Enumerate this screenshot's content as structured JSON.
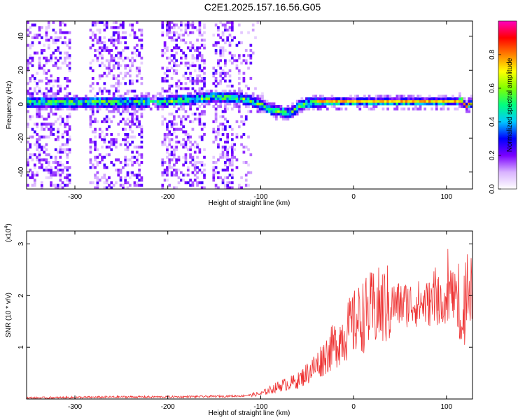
{
  "title": "C2E1.2025.157.16.56.G05",
  "chart_data": [
    {
      "type": "heatmap",
      "xlabel": "Height of straight line (km)",
      "ylabel": "Frequency (Hz)",
      "xlim": [
        -352,
        128
      ],
      "ylim": [
        -50,
        49
      ],
      "xticks": [
        -300,
        -200,
        -100,
        0,
        100
      ],
      "yticks": [
        -40,
        -20,
        0,
        20,
        40
      ],
      "grid": false,
      "colorbar": {
        "label": "Normalized spectral amplitude",
        "range": [
          0,
          1
        ],
        "ticks": [
          0.0,
          0.2,
          0.4,
          0.6,
          0.8
        ],
        "tick_labels": [
          "0.0",
          "0.2",
          "0.4",
          "0.6",
          "0.8"
        ],
        "colors": [
          "#ffffff",
          "#d9b3ff",
          "#7a00ff",
          "#0000ff",
          "#00c8ff",
          "#00ff80",
          "#80ff00",
          "#ffff00",
          "#ff8000",
          "#ff0000",
          "#ff00c0"
        ]
      },
      "ridge": {
        "x": [
          -352,
          -300,
          -250,
          -225,
          -200,
          -150,
          -120,
          -100,
          -90,
          -80,
          -70,
          -60,
          -50,
          -40,
          -30,
          0,
          50,
          90,
          110,
          115,
          120,
          128
        ],
        "y": [
          0.5,
          0.5,
          0.5,
          0.5,
          1,
          3.5,
          2.5,
          -1,
          -4,
          -5,
          -6,
          -2,
          0,
          0.5,
          0.5,
          0.5,
          0.5,
          0.5,
          0.5,
          2,
          -2,
          1
        ]
      }
    },
    {
      "type": "line",
      "xlabel": "Height of straight line (km)",
      "ylabel": "SNR (10 * v/v)",
      "yscale_label": "(x10",
      "yscale_exp": "4",
      "yscale_tail": ")",
      "xlim": [
        -352,
        128
      ],
      "ylim": [
        0,
        3.25
      ],
      "xticks": [
        -300,
        -200,
        -100,
        0,
        100
      ],
      "yticks": [
        1,
        2,
        3
      ],
      "grid": false,
      "series": [
        {
          "color": "#ee3333",
          "x": [
            -352,
            -300,
            -250,
            -200,
            -150,
            -120,
            -100,
            -80,
            -60,
            -50,
            -40,
            -30,
            -20,
            -10,
            0,
            10,
            20,
            30,
            40,
            60,
            80,
            90,
            100,
            105,
            110,
            115,
            120,
            125,
            128
          ],
          "y": [
            0.02,
            0.03,
            0.04,
            0.04,
            0.05,
            0.06,
            0.1,
            0.25,
            0.35,
            0.5,
            0.65,
            0.85,
            1.05,
            1.25,
            1.45,
            1.6,
            1.72,
            1.78,
            1.82,
            1.84,
            1.85,
            1.88,
            1.95,
            2.1,
            1.9,
            1.4,
            1.6,
            1.9,
            1.8
          ]
        }
      ]
    }
  ]
}
